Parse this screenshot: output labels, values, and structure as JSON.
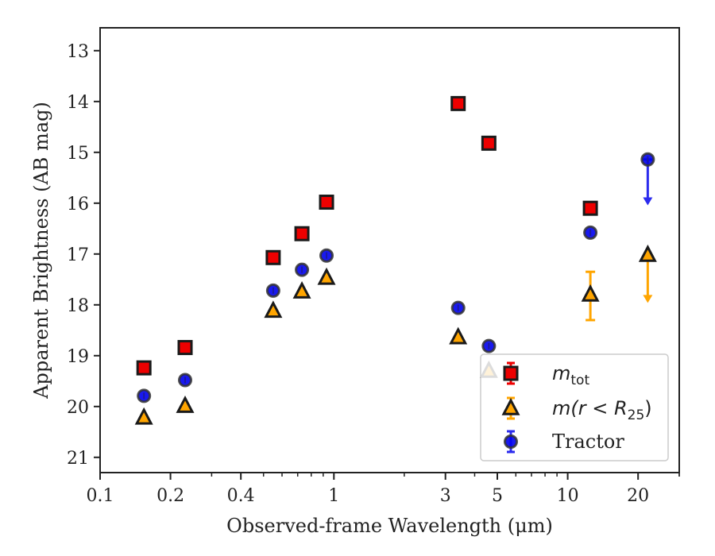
{
  "chart_data": {
    "type": "scatter",
    "xlabel": "Observed-frame Wavelength (μm)",
    "ylabel": "Apparent Brightness (AB mag)",
    "xscale": "log",
    "xlim": [
      0.1,
      30
    ],
    "ylim": [
      21.3,
      12.55
    ],
    "y_inverted": true,
    "x_ticks": [
      0.1,
      0.2,
      0.4,
      1,
      3,
      5,
      10,
      20
    ],
    "x_tick_labels": [
      "0.1",
      "0.2",
      "0.4",
      "1",
      "3",
      "5",
      "10",
      "20"
    ],
    "y_ticks": [
      13,
      14,
      15,
      16,
      17,
      18,
      19,
      20,
      21
    ],
    "y_tick_labels": [
      "13",
      "14",
      "15",
      "16",
      "17",
      "18",
      "19",
      "20",
      "21"
    ],
    "grid": false,
    "legend": {
      "placement": "lower-right",
      "entries": [
        {
          "label_main": "m",
          "label_sub": "tot",
          "series": "mtot"
        },
        {
          "label_text": "m(r < R",
          "label_sub": "25",
          "label_tail": ")",
          "series": "mr25"
        },
        {
          "label_text": "Tractor",
          "series": "tractor"
        }
      ]
    },
    "series": [
      {
        "key": "mtot",
        "marker": "square",
        "color": "#ee0000",
        "edge_color": "#1a1a1a",
        "points": [
          {
            "x": 0.154,
            "y": 19.24
          },
          {
            "x": 0.231,
            "y": 18.84
          },
          {
            "x": 0.55,
            "y": 17.07
          },
          {
            "x": 0.73,
            "y": 16.6
          },
          {
            "x": 0.93,
            "y": 15.98
          },
          {
            "x": 3.4,
            "y": 14.04
          },
          {
            "x": 4.6,
            "y": 14.82
          },
          {
            "x": 12.5,
            "y": 16.1
          }
        ]
      },
      {
        "key": "mr25",
        "marker": "triangle",
        "color": "#ffa500",
        "edge_color": "#1a1a1a",
        "points": [
          {
            "x": 0.154,
            "y": 20.22
          },
          {
            "x": 0.231,
            "y": 19.99
          },
          {
            "x": 0.55,
            "y": 18.12
          },
          {
            "x": 0.73,
            "y": 17.74
          },
          {
            "x": 0.93,
            "y": 17.47
          },
          {
            "x": 3.4,
            "y": 18.64
          },
          {
            "x": 4.6,
            "y": 19.3
          },
          {
            "x": 12.5,
            "y": 17.8,
            "yerr_low": 17.35,
            "yerr_high": 18.3
          },
          {
            "x": 22,
            "y": 17.02,
            "upper_limit_to": 17.9
          }
        ]
      },
      {
        "key": "tractor",
        "marker": "circle",
        "color": "#0000ee",
        "edge_color": "#333333",
        "points": [
          {
            "x": 0.154,
            "y": 19.79
          },
          {
            "x": 0.231,
            "y": 19.48
          },
          {
            "x": 0.55,
            "y": 17.72
          },
          {
            "x": 0.73,
            "y": 17.31
          },
          {
            "x": 0.93,
            "y": 17.03
          },
          {
            "x": 3.4,
            "y": 18.06
          },
          {
            "x": 4.6,
            "y": 18.81
          },
          {
            "x": 12.5,
            "y": 16.58
          },
          {
            "x": 22,
            "y": 15.14,
            "upper_limit_to": 15.98
          }
        ]
      }
    ]
  }
}
